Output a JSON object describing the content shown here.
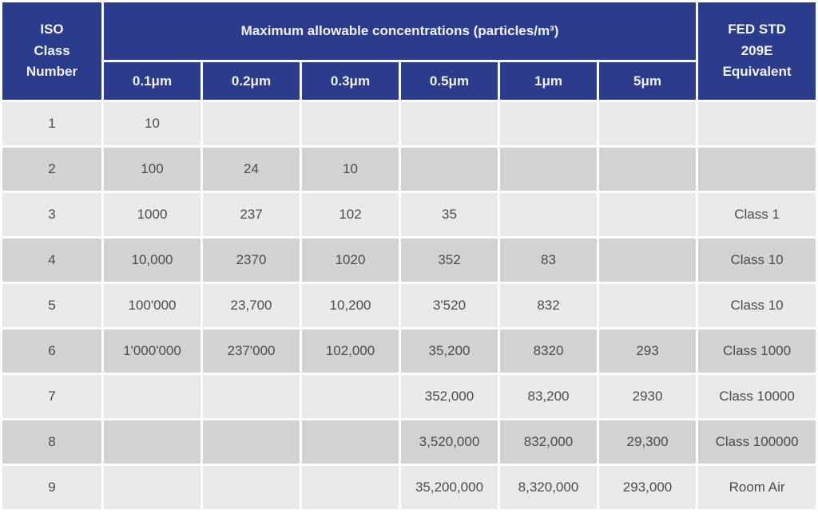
{
  "table": {
    "corner_header": "ISO\nClass\nNumber",
    "span_header": "Maximum allowable concentrations (particles/m³)",
    "fed_header": "FED STD\n209E\nEquivalent",
    "size_headers": [
      "0.1μm",
      "0.2μm",
      "0.3μm",
      "0.5μm",
      "1μm",
      "5μm"
    ],
    "rows": [
      {
        "class": "1",
        "values": [
          "10",
          "",
          "",
          "",
          "",
          ""
        ],
        "fed": ""
      },
      {
        "class": "2",
        "values": [
          "100",
          "24",
          "10",
          "",
          "",
          ""
        ],
        "fed": ""
      },
      {
        "class": "3",
        "values": [
          "1000",
          "237",
          "102",
          "35",
          "",
          ""
        ],
        "fed": "Class 1"
      },
      {
        "class": "4",
        "values": [
          "10,000",
          "2370",
          "1020",
          "352",
          "83",
          ""
        ],
        "fed": "Class 10"
      },
      {
        "class": "5",
        "values": [
          "100'000",
          "23,700",
          "10,200",
          "3'520",
          "832",
          ""
        ],
        "fed": "Class 10"
      },
      {
        "class": "6",
        "values": [
          "1'000'000",
          "237'000",
          "102,000",
          "35,200",
          "8320",
          "293"
        ],
        "fed": "Class 1000"
      },
      {
        "class": "7",
        "values": [
          "",
          "",
          "",
          "352,000",
          "83,200",
          "2930"
        ],
        "fed": "Class 10000"
      },
      {
        "class": "8",
        "values": [
          "",
          "",
          "",
          "3,520,000",
          "832,000",
          "29,300"
        ],
        "fed": "Class 100000"
      },
      {
        "class": "9",
        "values": [
          "",
          "",
          "",
          "35,200,000",
          "8,320,000",
          "293,000"
        ],
        "fed": "Room Air"
      }
    ]
  },
  "colors": {
    "header_blue": "#2b3c8c",
    "row_light": "#e8e9e9",
    "row_dark": "#d1d2d3",
    "grid_white": "#ffffff",
    "cell_text": "#4b4b4b",
    "header_text": "#f1f2f7"
  },
  "chart_data": {
    "type": "table",
    "title": "Maximum allowable concentrations (particles/m³)",
    "row_header": "ISO Class Number",
    "columns": [
      "0.1μm",
      "0.2μm",
      "0.3μm",
      "0.5μm",
      "1μm",
      "5μm",
      "FED STD 209E Equivalent"
    ],
    "rows": [
      {
        "iso_class": 1,
        "um_0_1": 10,
        "um_0_2": null,
        "um_0_3": null,
        "um_0_5": null,
        "um_1": null,
        "um_5": null,
        "fed_std_209e": null
      },
      {
        "iso_class": 2,
        "um_0_1": 100,
        "um_0_2": 24,
        "um_0_3": 10,
        "um_0_5": null,
        "um_1": null,
        "um_5": null,
        "fed_std_209e": null
      },
      {
        "iso_class": 3,
        "um_0_1": 1000,
        "um_0_2": 237,
        "um_0_3": 102,
        "um_0_5": 35,
        "um_1": null,
        "um_5": null,
        "fed_std_209e": "Class 1"
      },
      {
        "iso_class": 4,
        "um_0_1": 10000,
        "um_0_2": 2370,
        "um_0_3": 1020,
        "um_0_5": 352,
        "um_1": 83,
        "um_5": null,
        "fed_std_209e": "Class 10"
      },
      {
        "iso_class": 5,
        "um_0_1": 100000,
        "um_0_2": 23700,
        "um_0_3": 10200,
        "um_0_5": 3520,
        "um_1": 832,
        "um_5": null,
        "fed_std_209e": "Class 10"
      },
      {
        "iso_class": 6,
        "um_0_1": 1000000,
        "um_0_2": 237000,
        "um_0_3": 102000,
        "um_0_5": 35200,
        "um_1": 8320,
        "um_5": 293,
        "fed_std_209e": "Class 1000"
      },
      {
        "iso_class": 7,
        "um_0_1": null,
        "um_0_2": null,
        "um_0_3": null,
        "um_0_5": 352000,
        "um_1": 83200,
        "um_5": 2930,
        "fed_std_209e": "Class 10000"
      },
      {
        "iso_class": 8,
        "um_0_1": null,
        "um_0_2": null,
        "um_0_3": null,
        "um_0_5": 3520000,
        "um_1": 832000,
        "um_5": 29300,
        "fed_std_209e": "Class 100000"
      },
      {
        "iso_class": 9,
        "um_0_1": null,
        "um_0_2": null,
        "um_0_3": null,
        "um_0_5": 35200000,
        "um_1": 8320000,
        "um_5": 293000,
        "fed_std_209e": "Room Air"
      }
    ]
  }
}
